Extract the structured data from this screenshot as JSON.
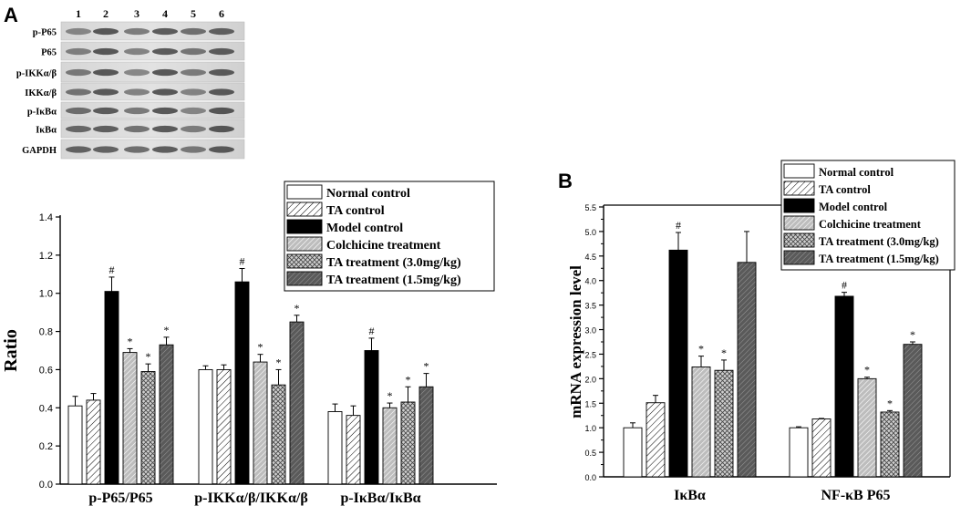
{
  "panel_a_letter": "A",
  "panel_b_letter": "B",
  "blot": {
    "lanes": [
      "1",
      "2",
      "3",
      "4",
      "5",
      "6"
    ],
    "rows": [
      "p-P65",
      "P65",
      "p-IKKα/β",
      "IKKα/β",
      "p-IκBα",
      "IκBα",
      "GAPDH"
    ]
  },
  "chart_data": [
    {
      "type": "bar",
      "panel": "A",
      "title": "",
      "xlabel": "",
      "ylabel": "Ratio",
      "ylim": [
        0,
        1.4
      ],
      "yticks": [
        "0.0",
        "0.2",
        "0.4",
        "0.6",
        "0.8",
        "1.0",
        "1.2",
        "1.4"
      ],
      "categories": [
        "p-P65/P65",
        "p-IKKα/β/IKKα/β",
        "p-IκBα/IκBα"
      ],
      "legend_position": "top-right",
      "series": [
        {
          "name": "Normal control",
          "pattern": "white",
          "values": [
            0.41,
            0.6,
            0.38
          ],
          "errors": [
            0.05,
            0.02,
            0.04
          ],
          "marks": [
            "",
            "",
            ""
          ]
        },
        {
          "name": "TA control",
          "pattern": "hatch-light",
          "values": [
            0.44,
            0.6,
            0.36
          ],
          "errors": [
            0.035,
            0.025,
            0.05
          ],
          "marks": [
            "",
            "",
            ""
          ]
        },
        {
          "name": "Model control",
          "pattern": "black",
          "values": [
            1.01,
            1.06,
            0.7
          ],
          "errors": [
            0.075,
            0.07,
            0.065
          ],
          "marks": [
            "#",
            "#",
            "#"
          ]
        },
        {
          "name": "Colchicine treatment",
          "pattern": "hatch-gray",
          "values": [
            0.69,
            0.64,
            0.4
          ],
          "errors": [
            0.02,
            0.04,
            0.025
          ],
          "marks": [
            "*",
            "*",
            "*"
          ]
        },
        {
          "name": "TA treatment (3.0mg/kg)",
          "pattern": "crosshatch",
          "values": [
            0.59,
            0.52,
            0.43
          ],
          "errors": [
            0.04,
            0.08,
            0.08
          ],
          "marks": [
            "*",
            "*",
            "*"
          ]
        },
        {
          "name": "TA treatment (1.5mg/kg)",
          "pattern": "hatch-dark",
          "values": [
            0.73,
            0.85,
            0.51
          ],
          "errors": [
            0.04,
            0.035,
            0.07
          ],
          "marks": [
            "*",
            "*",
            "*"
          ]
        }
      ]
    },
    {
      "type": "bar",
      "panel": "B",
      "title": "",
      "xlabel": "",
      "ylabel": "mRNA expression level",
      "ylim": [
        0,
        5.5
      ],
      "yticks": [
        "0.0",
        "0.5",
        "1.0",
        "1.5",
        "2.0",
        "2.5",
        "3.0",
        "3.5",
        "4.0",
        "4.5",
        "5.0",
        "5.5"
      ],
      "categories": [
        "IκBα",
        "NF-κB P65"
      ],
      "legend_position": "top",
      "series": [
        {
          "name": "Normal control",
          "pattern": "white",
          "values": [
            1.0,
            1.0
          ],
          "errors": [
            0.1,
            0.02
          ],
          "marks": [
            "",
            ""
          ]
        },
        {
          "name": "TA control",
          "pattern": "hatch-light",
          "values": [
            1.51,
            1.18
          ],
          "errors": [
            0.15,
            0.01
          ],
          "marks": [
            "",
            ""
          ]
        },
        {
          "name": "Model control",
          "pattern": "black",
          "values": [
            4.62,
            3.68
          ],
          "errors": [
            0.36,
            0.08
          ],
          "marks": [
            "#",
            "#"
          ]
        },
        {
          "name": "Colchicine treatment",
          "pattern": "hatch-gray",
          "values": [
            2.24,
            2.0
          ],
          "errors": [
            0.22,
            0.03
          ],
          "marks": [
            "*",
            "*"
          ]
        },
        {
          "name": "TA treatment (3.0mg/kg)",
          "pattern": "crosshatch",
          "values": [
            2.17,
            1.32
          ],
          "errors": [
            0.21,
            0.03
          ],
          "marks": [
            "*",
            "*"
          ]
        },
        {
          "name": "TA treatment (1.5mg/kg)",
          "pattern": "hatch-dark",
          "values": [
            4.37,
            2.7
          ],
          "errors": [
            0.63,
            0.05
          ],
          "marks": [
            "",
            "*"
          ]
        }
      ]
    }
  ]
}
